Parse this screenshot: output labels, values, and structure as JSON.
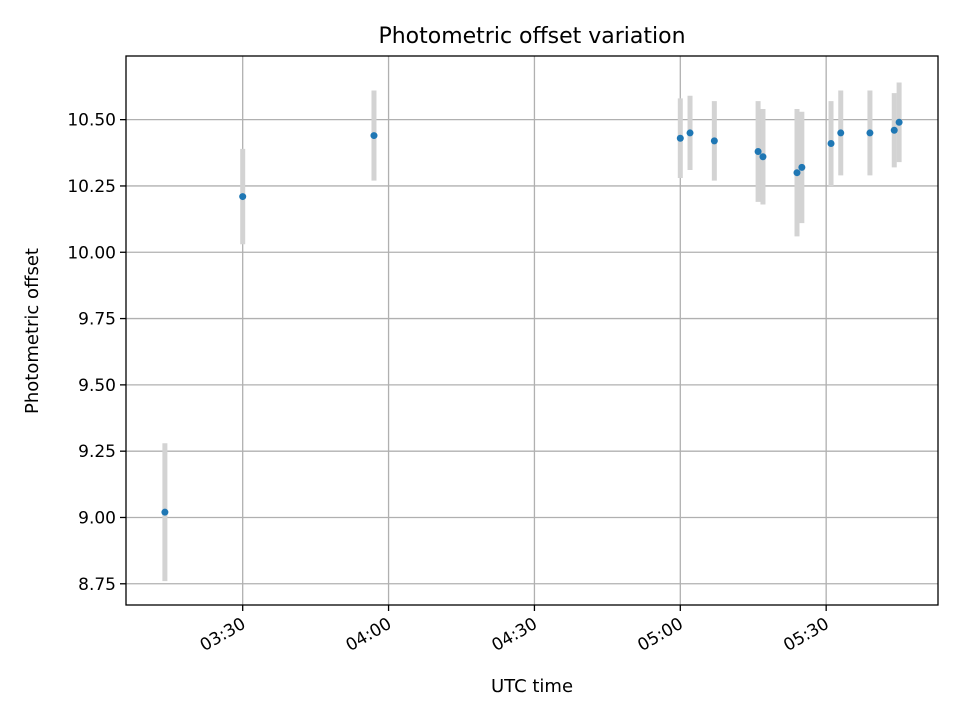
{
  "chart_data": {
    "type": "scatter",
    "title": "Photometric offset variation",
    "xlabel": "UTC time",
    "ylabel": "Photometric offset",
    "x_ticks": [
      "03:30",
      "04:00",
      "04:30",
      "05:00",
      "05:30"
    ],
    "y_ticks": [
      "8.75",
      "9.00",
      "9.25",
      "9.50",
      "9.75",
      "10.00",
      "10.25",
      "10.50"
    ],
    "xlim": [
      "03:06",
      "05:53"
    ],
    "ylim": [
      8.67,
      10.74
    ],
    "grid": true,
    "colors": {
      "points": "#1f77b4",
      "errorbars": "#d3d3d3",
      "grid": "#b0b0b0"
    },
    "points": [
      {
        "x": "03:14",
        "y": 9.02,
        "err": 0.26
      },
      {
        "x": "03:30",
        "y": 10.21,
        "err": 0.18
      },
      {
        "x": "03:57",
        "y": 10.44,
        "err": 0.17
      },
      {
        "x": "05:00",
        "y": 10.43,
        "err": 0.15
      },
      {
        "x": "05:02",
        "y": 10.45,
        "err": 0.14
      },
      {
        "x": "05:07",
        "y": 10.42,
        "err": 0.15
      },
      {
        "x": "05:16",
        "y": 10.38,
        "err": 0.19
      },
      {
        "x": "05:17",
        "y": 10.36,
        "err": 0.18
      },
      {
        "x": "05:24",
        "y": 10.3,
        "err": 0.24
      },
      {
        "x": "05:25",
        "y": 10.32,
        "err": 0.21
      },
      {
        "x": "05:31",
        "y": 10.41,
        "err": 0.16
      },
      {
        "x": "05:33",
        "y": 10.45,
        "err": 0.16
      },
      {
        "x": "05:39",
        "y": 10.45,
        "err": 0.16
      },
      {
        "x": "05:44",
        "y": 10.46,
        "err": 0.14
      },
      {
        "x": "05:45",
        "y": 10.49,
        "err": 0.15
      }
    ]
  }
}
